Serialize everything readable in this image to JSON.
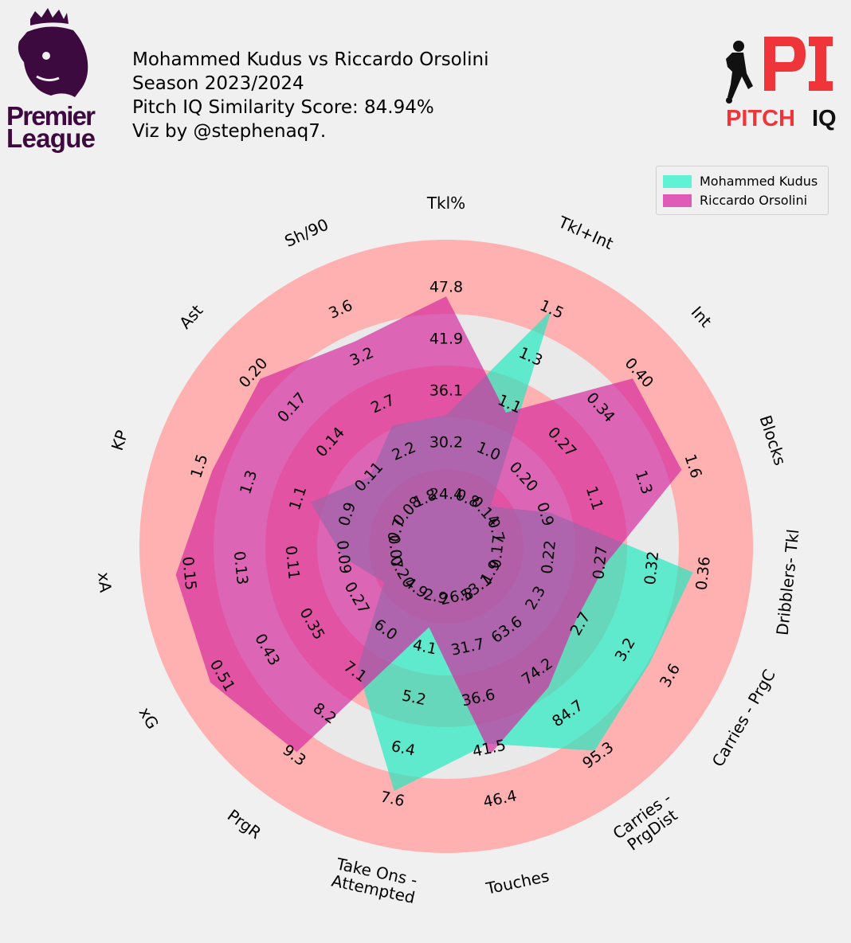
{
  "header": {
    "line1": "Mohammed Kudus vs Riccardo Orsolini",
    "line2": "Season 2023/2024",
    "line3": "Pitch IQ Similarity Score: 84.94%",
    "line4": "Viz by @stephenaq7."
  },
  "logos": {
    "left": {
      "line1": "Premier",
      "line2": "League",
      "color": "#3d0a3f"
    },
    "right": {
      "word1": "PITCH",
      "word2": "IQ",
      "color_red": "#f0353a",
      "color_dark": "#111111"
    }
  },
  "colors": {
    "background": "#f0f0f0",
    "ring_outer": "#ffb0b0",
    "ring_inner": "#e9e9e9",
    "kudus": "#1de9c0",
    "orsolini": "#d6279e"
  },
  "legend": [
    {
      "label": "Mohammed Kudus",
      "color": "#5ff2d4"
    },
    {
      "label": "Riccardo Orsolini",
      "color": "#e05ab8"
    }
  ],
  "chart_data": {
    "type": "radar",
    "params": [
      "Tkl%",
      "Tkl+Int",
      "Int",
      "Blocks",
      "Dribblers- Tkl",
      "Carries - PrgC",
      "Carries -\nPrgDist",
      "Touches",
      "Take Ons -\nAttempted",
      "PrgR",
      "xG",
      "xA",
      "KP",
      "Ast",
      "Sh/90"
    ],
    "ticks": [
      [
        "24.4",
        "30.2",
        "36.1",
        "41.9",
        "47.8"
      ],
      [
        "0.8",
        "1.0",
        "1.1",
        "1.3",
        "1.5"
      ],
      [
        "0.14",
        "0.20",
        "0.27",
        "0.34",
        "0.40"
      ],
      [
        "0.7",
        "0.9",
        "1.1",
        "1.3",
        "1.6"
      ],
      [
        "0.17",
        "0.22",
        "0.27",
        "0.32",
        "0.36"
      ],
      [
        "1.9",
        "2.3",
        "2.7",
        "3.2",
        "3.6"
      ],
      [
        "53.1",
        "63.6",
        "74.2",
        "84.7",
        "95.3"
      ],
      [
        "26.8",
        "31.7",
        "36.6",
        "41.5",
        "46.4"
      ],
      [
        "2.9",
        "4.1",
        "5.2",
        "6.4",
        "7.6"
      ],
      [
        "4.9",
        "6.0",
        "7.1",
        "8.2",
        "9.3"
      ],
      [
        "0.20",
        "0.27",
        "0.35",
        "0.43",
        "0.51"
      ],
      [
        "0.07",
        "0.09",
        "0.11",
        "0.13",
        "0.15"
      ],
      [
        "0.7",
        "0.9",
        "1.1",
        "1.3",
        "1.5"
      ],
      [
        "0.08",
        "0.11",
        "0.14",
        "0.17",
        "0.20"
      ],
      [
        "1.8",
        "2.2",
        "2.7",
        "3.2",
        "3.6"
      ]
    ],
    "series": [
      {
        "name": "Mohammed Kudus",
        "values": [
          33.4,
          1.5,
          0.15,
          0.95,
          0.35,
          3.4,
          94.0,
          41.0,
          7.4,
          7.0,
          0.23,
          0.09,
          1.05,
          0.11,
          2.5
        ]
      },
      {
        "name": "Riccardo Orsolini",
        "values": [
          46.8,
          1.12,
          0.39,
          1.55,
          0.27,
          2.7,
          78.0,
          42.0,
          3.6,
          9.2,
          0.53,
          0.155,
          1.45,
          0.195,
          3.3
        ]
      }
    ]
  }
}
